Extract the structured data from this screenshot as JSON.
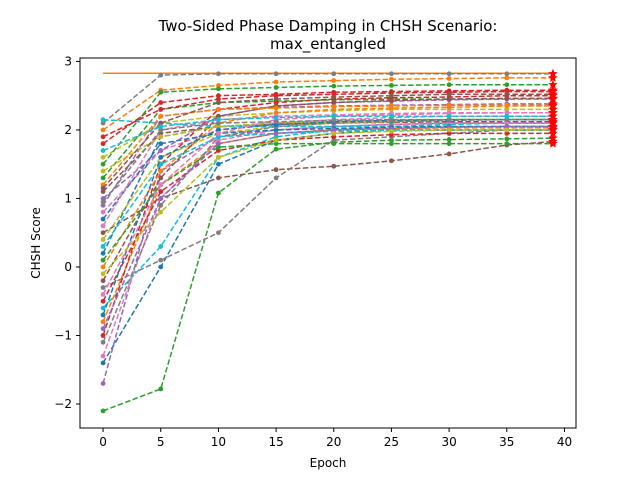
{
  "chart_data": {
    "type": "line",
    "title_line1": "Two-Sided Phase Damping in CHSH Scenario:",
    "title_line2": "max_entangled",
    "xlabel": "Epoch",
    "ylabel": "CHSH Score",
    "xlim": [
      -2,
      41
    ],
    "ylim": [
      -2.35,
      3.05
    ],
    "xticks": [
      0,
      5,
      10,
      15,
      20,
      25,
      30,
      35,
      40
    ],
    "yticks": [
      -2,
      -1,
      0,
      1,
      2,
      3
    ],
    "grid": false,
    "reference_line": {
      "name": "",
      "value": 2.828,
      "color": "#ff7f0e",
      "style": "solid"
    },
    "final_marker_color": "#ff0000",
    "x": [
      0,
      5,
      10,
      15,
      20,
      25,
      30,
      35,
      39
    ],
    "series": [
      {
        "color": "#1f77b4",
        "values": [
          -1.4,
          0.0,
          1.5,
          1.85,
          1.95,
          2.0,
          2.0,
          2.0,
          2.0
        ]
      },
      {
        "color": "#ff7f0e",
        "values": [
          2.0,
          2.58,
          2.65,
          2.7,
          2.72,
          2.74,
          2.75,
          2.76,
          2.76
        ]
      },
      {
        "color": "#2ca02c",
        "values": [
          -2.1,
          -1.78,
          1.08,
          1.72,
          1.82,
          1.85,
          1.86,
          1.87,
          1.88
        ]
      },
      {
        "color": "#d62728",
        "values": [
          1.8,
          2.4,
          2.5,
          2.52,
          2.55,
          2.56,
          2.57,
          2.58,
          2.58
        ]
      },
      {
        "color": "#9467bd",
        "values": [
          -1.7,
          1.4,
          1.9,
          2.0,
          2.05,
          2.08,
          2.1,
          2.1,
          2.1
        ]
      },
      {
        "color": "#8c564b",
        "values": [
          0.5,
          1.0,
          1.3,
          1.42,
          1.47,
          1.55,
          1.65,
          1.78,
          1.83
        ]
      },
      {
        "color": "#e377c2",
        "values": [
          0.8,
          1.7,
          2.0,
          2.1,
          2.15,
          2.18,
          2.2,
          2.2,
          2.2
        ]
      },
      {
        "color": "#7f7f7f",
        "values": [
          -0.3,
          0.1,
          0.5,
          1.3,
          1.85,
          1.9,
          1.95,
          2.0,
          2.0
        ]
      },
      {
        "color": "#bcbd22",
        "values": [
          1.6,
          2.1,
          2.2,
          2.25,
          2.28,
          2.3,
          2.3,
          2.3,
          2.3
        ]
      },
      {
        "color": "#17becf",
        "values": [
          -0.6,
          0.3,
          1.6,
          1.9,
          2.0,
          2.05,
          2.08,
          2.1,
          2.1
        ]
      },
      {
        "color": "#1f77b4",
        "values": [
          0.2,
          1.9,
          2.05,
          2.1,
          2.12,
          2.14,
          2.15,
          2.15,
          2.15
        ]
      },
      {
        "color": "#ff7f0e",
        "values": [
          -0.8,
          1.2,
          1.8,
          1.95,
          2.0,
          2.02,
          2.03,
          2.03,
          2.03
        ]
      },
      {
        "color": "#2ca02c",
        "values": [
          1.3,
          2.3,
          2.4,
          2.42,
          2.44,
          2.45,
          2.45,
          2.46,
          2.46
        ]
      },
      {
        "color": "#d62728",
        "values": [
          -1.0,
          1.5,
          2.3,
          2.4,
          2.45,
          2.47,
          2.48,
          2.5,
          2.5
        ]
      },
      {
        "color": "#9467bd",
        "values": [
          0.9,
          2.2,
          2.3,
          2.33,
          2.35,
          2.36,
          2.37,
          2.38,
          2.38
        ]
      },
      {
        "color": "#8c564b",
        "values": [
          1.1,
          1.95,
          2.05,
          2.08,
          2.1,
          2.11,
          2.12,
          2.12,
          2.12
        ]
      },
      {
        "color": "#e377c2",
        "values": [
          -1.3,
          1.0,
          1.85,
          2.0,
          2.05,
          2.08,
          2.1,
          2.1,
          2.1
        ]
      },
      {
        "color": "#7f7f7f",
        "values": [
          2.1,
          2.8,
          2.82,
          2.82,
          2.82,
          2.82,
          2.82,
          2.82,
          2.82
        ]
      },
      {
        "color": "#bcbd22",
        "values": [
          0.4,
          1.6,
          1.95,
          2.05,
          2.1,
          2.12,
          2.15,
          2.15,
          2.15
        ]
      },
      {
        "color": "#17becf",
        "values": [
          2.15,
          2.1,
          2.05,
          2.05,
          2.05,
          2.05,
          2.05,
          2.05,
          2.05
        ]
      },
      {
        "color": "#1f77b4",
        "values": [
          0.7,
          1.8,
          1.95,
          2.0,
          2.02,
          2.04,
          2.05,
          2.05,
          2.05
        ]
      },
      {
        "color": "#ff7f0e",
        "values": [
          0.0,
          1.4,
          2.1,
          2.25,
          2.3,
          2.32,
          2.33,
          2.35,
          2.35
        ]
      },
      {
        "color": "#2ca02c",
        "values": [
          1.5,
          2.55,
          2.6,
          2.62,
          2.64,
          2.65,
          2.66,
          2.66,
          2.66
        ]
      },
      {
        "color": "#d62728",
        "values": [
          -0.5,
          1.1,
          1.7,
          1.85,
          1.9,
          1.93,
          1.95,
          1.95,
          1.95
        ]
      },
      {
        "color": "#9467bd",
        "values": [
          1.0,
          1.7,
          2.2,
          2.35,
          2.4,
          2.42,
          2.44,
          2.45,
          2.45
        ]
      },
      {
        "color": "#8c564b",
        "values": [
          -0.2,
          1.3,
          2.2,
          2.35,
          2.4,
          2.43,
          2.45,
          2.46,
          2.46
        ]
      },
      {
        "color": "#e377c2",
        "values": [
          0.6,
          2.0,
          2.15,
          2.2,
          2.22,
          2.24,
          2.25,
          2.25,
          2.25
        ]
      },
      {
        "color": "#7f7f7f",
        "values": [
          -1.1,
          0.9,
          1.9,
          2.05,
          2.1,
          2.12,
          2.14,
          2.15,
          2.15
        ]
      },
      {
        "color": "#bcbd22",
        "values": [
          1.4,
          1.9,
          2.05,
          2.1,
          2.12,
          2.14,
          2.15,
          2.15,
          2.15
        ]
      },
      {
        "color": "#17becf",
        "values": [
          0.3,
          1.5,
          1.9,
          1.95,
          1.98,
          2.0,
          2.0,
          2.0,
          2.0
        ]
      },
      {
        "color": "#1f77b4",
        "values": [
          -0.7,
          1.6,
          2.0,
          2.08,
          2.12,
          2.14,
          2.15,
          2.15,
          2.15
        ]
      },
      {
        "color": "#ff7f0e",
        "values": [
          1.2,
          2.2,
          2.3,
          2.32,
          2.34,
          2.35,
          2.36,
          2.36,
          2.36
        ]
      },
      {
        "color": "#2ca02c",
        "values": [
          0.1,
          1.2,
          1.75,
          1.8,
          1.8,
          1.8,
          1.8,
          1.8,
          1.8
        ]
      },
      {
        "color": "#d62728",
        "values": [
          1.9,
          2.3,
          2.45,
          2.5,
          2.52,
          2.54,
          2.55,
          2.56,
          2.56
        ]
      },
      {
        "color": "#9467bd",
        "values": [
          -0.9,
          1.0,
          1.8,
          1.95,
          2.0,
          2.02,
          2.04,
          2.05,
          2.05
        ]
      },
      {
        "color": "#8c564b",
        "values": [
          1.15,
          2.1,
          2.4,
          2.45,
          2.48,
          2.5,
          2.52,
          2.52,
          2.52
        ]
      },
      {
        "color": "#e377c2",
        "values": [
          -0.4,
          1.2,
          1.95,
          2.15,
          2.2,
          2.22,
          2.24,
          2.25,
          2.25
        ]
      },
      {
        "color": "#7f7f7f",
        "values": [
          0.95,
          2.0,
          2.1,
          2.12,
          2.14,
          2.15,
          2.15,
          2.15,
          2.15
        ]
      },
      {
        "color": "#bcbd22",
        "values": [
          -0.1,
          0.8,
          1.6,
          1.85,
          1.95,
          1.98,
          2.0,
          2.0,
          2.0
        ]
      },
      {
        "color": "#17becf",
        "values": [
          1.7,
          2.05,
          2.15,
          2.18,
          2.2,
          2.2,
          2.2,
          2.2,
          2.2
        ]
      }
    ]
  }
}
